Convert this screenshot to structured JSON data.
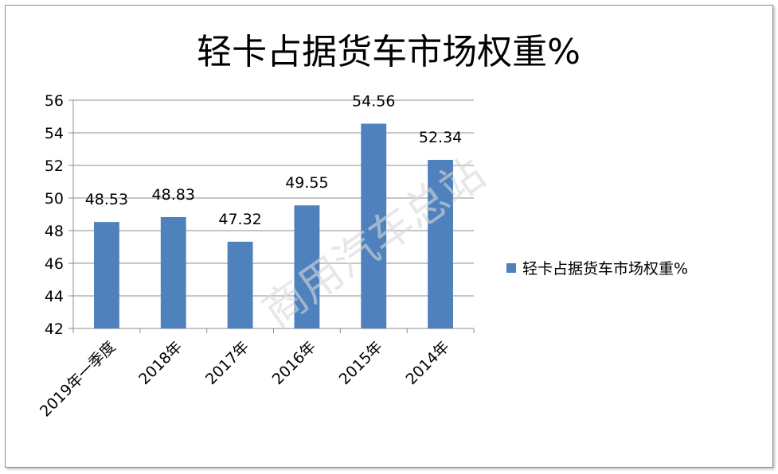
{
  "chart_data": {
    "type": "bar",
    "title": "轻卡占据货车市场权重%",
    "categories": [
      "2019年一季度",
      "2018年",
      "2017年",
      "2016年",
      "2015年",
      "2014年"
    ],
    "series": [
      {
        "name": "轻卡占据货车市场权重%",
        "values": [
          48.53,
          48.83,
          47.32,
          49.55,
          54.56,
          52.34
        ]
      }
    ],
    "value_labels": [
      "48.53",
      "48.83",
      "47.32",
      "49.55",
      "54.56",
      "52.34"
    ],
    "ylim": [
      42,
      56
    ],
    "yticks": [
      42,
      44,
      46,
      48,
      50,
      52,
      54,
      56
    ],
    "grid": true,
    "legend_position": "right",
    "colors": {
      "bar": "#4f81bd",
      "grid": "#8c8c8c",
      "axis": "#8c8c8c"
    }
  },
  "watermark": "商用汽车总站"
}
